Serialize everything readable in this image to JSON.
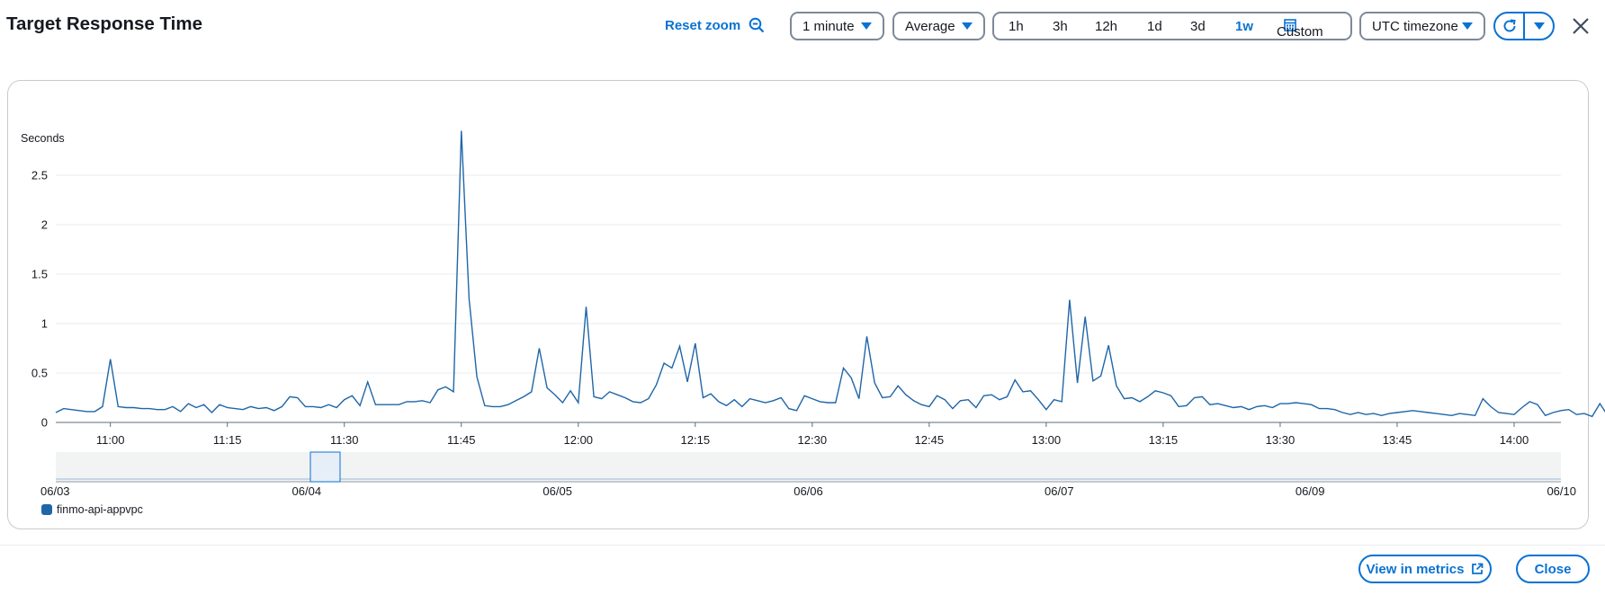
{
  "header": {
    "title": "Target Response Time",
    "reset_zoom": "Reset zoom",
    "period": "1 minute",
    "statistic": "Average",
    "ranges": [
      "1h",
      "3h",
      "12h",
      "1d",
      "3d",
      "1w"
    ],
    "active_range": "1w",
    "custom": "Custom",
    "timezone": "UTC timezone"
  },
  "colors": {
    "accent": "#0972d3",
    "series": "#1f66a8"
  },
  "icons": [
    "zoom-out-icon",
    "caret-down-icon",
    "calendar-icon",
    "refresh-icon",
    "close-icon",
    "external-link-icon"
  ],
  "chart_data": {
    "type": "line",
    "title": "",
    "xlabel": "",
    "ylabel": "Seconds",
    "ylim": [
      0,
      3
    ],
    "yticks": [
      "0",
      "0.5",
      "1",
      "1.5",
      "2",
      "2.5"
    ],
    "xlim": [
      "10:53",
      "14:06"
    ],
    "xticks": [
      "11:00",
      "11:15",
      "11:30",
      "11:45",
      "12:00",
      "12:15",
      "12:30",
      "12:45",
      "13:00",
      "13:15",
      "13:30",
      "13:45",
      "14:00"
    ],
    "grid": "horizontal",
    "series": [
      {
        "name": "finmo-api-appvpc",
        "start": "10:53",
        "interval_minutes": 1,
        "values": [
          0.1,
          0.14,
          0.13,
          0.12,
          0.11,
          0.11,
          0.16,
          0.64,
          0.16,
          0.15,
          0.15,
          0.14,
          0.14,
          0.13,
          0.13,
          0.16,
          0.11,
          0.19,
          0.15,
          0.18,
          0.1,
          0.18,
          0.15,
          0.14,
          0.13,
          0.16,
          0.14,
          0.15,
          0.12,
          0.16,
          0.26,
          0.25,
          0.16,
          0.16,
          0.15,
          0.18,
          0.15,
          0.23,
          0.27,
          0.17,
          0.41,
          0.18,
          0.18,
          0.18,
          0.18,
          0.21,
          0.21,
          0.22,
          0.2,
          0.33,
          0.36,
          0.31,
          2.95,
          1.25,
          0.46,
          0.17,
          0.16,
          0.16,
          0.18,
          0.22,
          0.26,
          0.31,
          0.75,
          0.35,
          0.28,
          0.2,
          0.32,
          0.2,
          1.17,
          0.26,
          0.24,
          0.31,
          0.28,
          0.25,
          0.21,
          0.2,
          0.24,
          0.38,
          0.6,
          0.55,
          0.77,
          0.41,
          0.8,
          0.25,
          0.29,
          0.21,
          0.17,
          0.23,
          0.16,
          0.24,
          0.22,
          0.2,
          0.22,
          0.25,
          0.14,
          0.12,
          0.27,
          0.24,
          0.21,
          0.2,
          0.2,
          0.55,
          0.45,
          0.24,
          0.87,
          0.4,
          0.25,
          0.26,
          0.37,
          0.28,
          0.22,
          0.18,
          0.16,
          0.27,
          0.23,
          0.14,
          0.22,
          0.23,
          0.15,
          0.27,
          0.28,
          0.23,
          0.26,
          0.43,
          0.31,
          0.32,
          0.23,
          0.13,
          0.23,
          0.21,
          1.24,
          0.4,
          1.07,
          0.42,
          0.47,
          0.78,
          0.37,
          0.24,
          0.25,
          0.21,
          0.26,
          0.32,
          0.3,
          0.27,
          0.16,
          0.17,
          0.25,
          0.26,
          0.18,
          0.19,
          0.17,
          0.15,
          0.16,
          0.13,
          0.16,
          0.17,
          0.15,
          0.19,
          0.19,
          0.2,
          0.19,
          0.18,
          0.14,
          0.14,
          0.13,
          0.1,
          0.08,
          0.1,
          0.08,
          0.09,
          0.07,
          0.09,
          0.1,
          0.11,
          0.12,
          0.11,
          0.1,
          0.09,
          0.08,
          0.07,
          0.09,
          0.08,
          0.07,
          0.24,
          0.16,
          0.1,
          0.09,
          0.08,
          0.15,
          0.21,
          0.18,
          0.07,
          0.1,
          0.12,
          0.13,
          0.08,
          0.09,
          0.06,
          0.19,
          0.07,
          0.13,
          0.12
        ]
      }
    ],
    "navigator": {
      "xticks": [
        "06/03",
        "06/04",
        "06/05",
        "06/06",
        "06/07",
        "06/09",
        "06/10"
      ]
    }
  },
  "legend": {
    "label": "finmo-api-appvpc"
  },
  "footer": {
    "view_in_metrics": "View in metrics",
    "close": "Close"
  }
}
